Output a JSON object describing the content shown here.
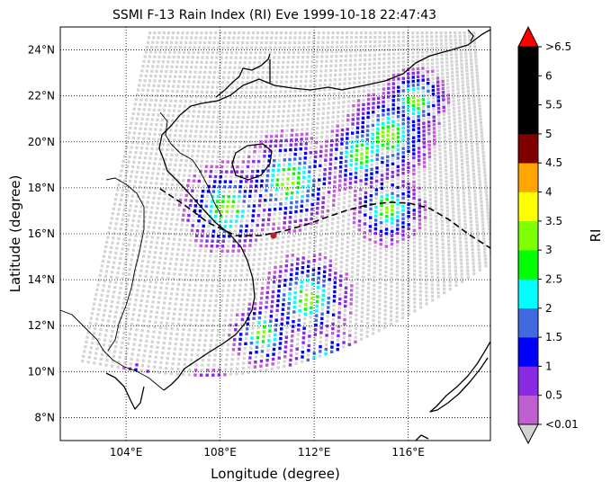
{
  "title": "SSMI F-13 Rain Index (RI) Eve 1999-10-18 22:47:43",
  "map": {
    "xlabel": "Longitude (degree)",
    "ylabel": "Latitude (degree)",
    "lon_range": [
      101.2,
      119.5
    ],
    "lat_range": [
      7.0,
      25.0
    ],
    "lon_ticks": [
      "104°E",
      "108°E",
      "112°E",
      "116°E"
    ],
    "lat_ticks": [
      "8°N",
      "10°N",
      "12°N",
      "14°N",
      "16°N",
      "18°N",
      "20°N",
      "22°N",
      "24°N"
    ],
    "graticule": "dotted",
    "swath_color": "#d3d3d3",
    "track_style": "dashed",
    "storm_marker_color": "#b22222"
  },
  "colorbar": {
    "label": "RI",
    "tick_labels": [
      ">6.5",
      "6",
      "5.5",
      "5",
      "4.5",
      "4",
      "3.5",
      "3",
      "2.5",
      "2",
      "1.5",
      "1",
      "0.5",
      "<0.01"
    ],
    "over_color": "#ff0000",
    "under_color": "#d3d3d3",
    "colors": [
      "#c060d0",
      "#8a2be2",
      "#0000ff",
      "#4169e1",
      "#00ffff",
      "#00ff00",
      "#7fff00",
      "#ffff00",
      "#ffa500",
      "#800000",
      "#000000",
      "#000000",
      "#000000"
    ]
  }
}
